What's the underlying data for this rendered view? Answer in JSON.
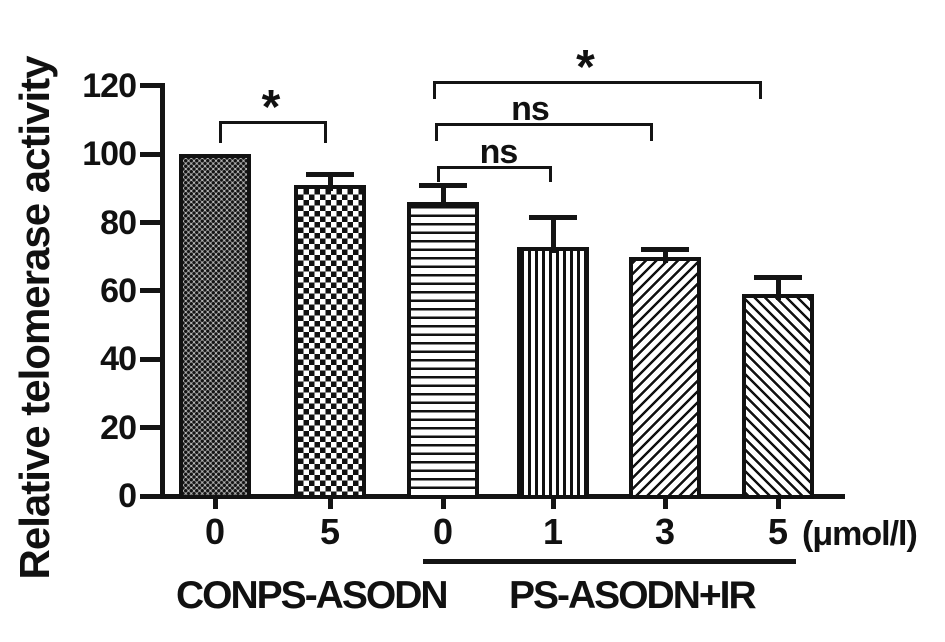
{
  "colors": {
    "ink": "#111111",
    "background": "#ffffff"
  },
  "y_axis": {
    "label": "Relative telomerase activity"
  },
  "x_axis": {
    "unit_label": "(μmol/l)"
  },
  "groups": [
    {
      "label": "CONPS-ASODN"
    },
    {
      "label": "PS-ASODN+IR"
    }
  ],
  "chart_data": {
    "type": "bar",
    "title": "",
    "ylabel": "Relative telomerase activity",
    "xlabel": "(μmol/l)",
    "ylim": [
      0,
      120
    ],
    "yticks": [
      0,
      20,
      40,
      60,
      80,
      100,
      120
    ],
    "grid": false,
    "legend": null,
    "categories": [
      "0",
      "5",
      "0",
      "1",
      "3",
      "5"
    ],
    "bar_groups": [
      {
        "label": "CONPS-ASODN",
        "bar_indices": [
          0,
          1
        ]
      },
      {
        "label": "PS-ASODN+IR",
        "bar_indices": [
          2,
          3,
          4,
          5
        ],
        "underlined": true
      }
    ],
    "values": [
      100,
      91,
      86,
      73,
      70,
      59
    ],
    "errors_up": [
      0,
      3,
      5,
      8.5,
      2,
      5
    ],
    "patterns": [
      "fine-dot-grid",
      "checkerboard",
      "horizontal-lines",
      "vertical-lines",
      "diagonal-up-lines",
      "diagonal-down-lines"
    ],
    "significance": [
      {
        "label": "*",
        "from_bar": 0,
        "to_bar": 1
      },
      {
        "label": "ns",
        "from_bar": 2,
        "to_bar": 3
      },
      {
        "label": "ns",
        "from_bar": 2,
        "to_bar": 4
      },
      {
        "label": "*",
        "from_bar": 2,
        "to_bar": 5
      }
    ]
  }
}
